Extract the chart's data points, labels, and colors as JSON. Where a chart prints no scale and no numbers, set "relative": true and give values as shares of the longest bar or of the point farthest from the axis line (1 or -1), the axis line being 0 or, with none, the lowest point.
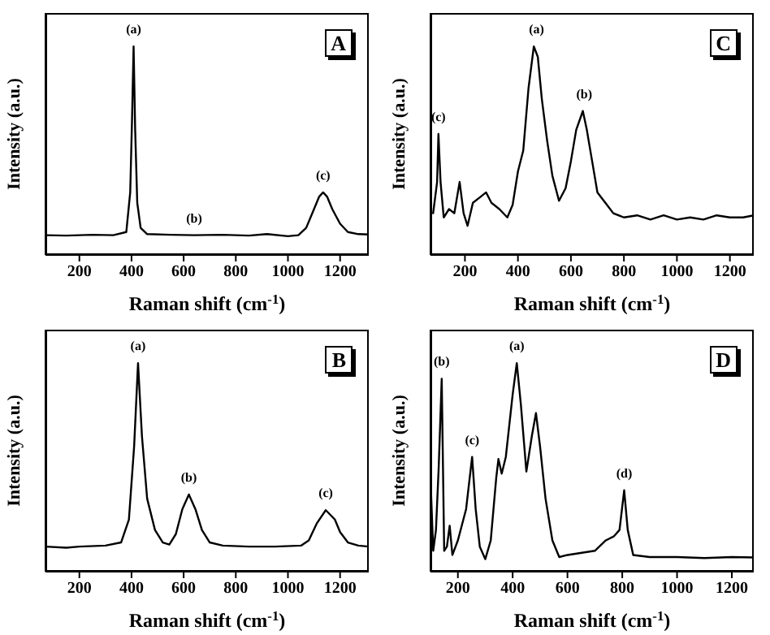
{
  "chart_data": [
    {
      "type": "line",
      "relative": true,
      "xlabel": "Raman shift (cm$^{-1}$)",
      "ylabel": "Intensity (a.u.)",
      "xlim": [
        70,
        1310
      ],
      "xticks": [
        200,
        400,
        600,
        800,
        1000,
        1200
      ],
      "marker": "none",
      "line_style": "solid",
      "series": [
        {
          "color": "#000000",
          "x": [
            70,
            150,
            250,
            330,
            380,
            395,
            402,
            408,
            414,
            422,
            435,
            460,
            550,
            640,
            750,
            850,
            920,
            1000,
            1040,
            1070,
            1100,
            1120,
            1135,
            1150,
            1170,
            1200,
            1230,
            1270,
            1310
          ],
          "values": [
            0.095,
            0.093,
            0.097,
            0.095,
            0.11,
            0.3,
            0.65,
            1,
            0.6,
            0.25,
            0.13,
            0.1,
            0.097,
            0.095,
            0.097,
            0.093,
            0.1,
            0.09,
            0.095,
            0.13,
            0.22,
            0.28,
            0.3,
            0.28,
            0.22,
            0.15,
            0.11,
            0.1,
            0.098
          ]
        }
      ],
      "annotations": [
        "A",
        {
          "text": "(a)",
          "x": 408,
          "y": 1
        },
        {
          "text": "(b)",
          "x": 640,
          "y": 0.095
        },
        {
          "text": "(c)",
          "x": 1135,
          "y": 0.3
        }
      ]
    },
    {
      "type": "line",
      "relative": true,
      "xlabel": "Raman shift (cm$^{-1}$)",
      "ylabel": "Intensity (a.u.)",
      "xlim": [
        70,
        1290
      ],
      "xticks": [
        200,
        400,
        600,
        800,
        1000,
        1200
      ],
      "marker": "none",
      "line_style": "solid",
      "series": [
        {
          "color": "#000000",
          "x": [
            80,
            95,
            100,
            108,
            120,
            140,
            160,
            180,
            195,
            210,
            230,
            260,
            280,
            300,
            330,
            360,
            380,
            400,
            420,
            440,
            460,
            475,
            490,
            510,
            530,
            555,
            580,
            600,
            620,
            645,
            660,
            680,
            700,
            730,
            760,
            800,
            850,
            900,
            950,
            1000,
            1050,
            1100,
            1150,
            1200,
            1250,
            1290
          ],
          "values": [
            0.2,
            0.35,
            0.58,
            0.35,
            0.18,
            0.22,
            0.2,
            0.35,
            0.2,
            0.14,
            0.25,
            0.28,
            0.3,
            0.25,
            0.22,
            0.18,
            0.24,
            0.4,
            0.5,
            0.8,
            1,
            0.95,
            0.75,
            0.55,
            0.38,
            0.26,
            0.32,
            0.45,
            0.6,
            0.69,
            0.6,
            0.45,
            0.3,
            0.25,
            0.2,
            0.18,
            0.19,
            0.17,
            0.19,
            0.17,
            0.18,
            0.17,
            0.19,
            0.18,
            0.18,
            0.19
          ]
        }
      ],
      "annotations": [
        "C",
        {
          "text": "(a)",
          "x": 470,
          "y": 1
        },
        {
          "text": "(b)",
          "x": 650,
          "y": 0.69
        },
        {
          "text": "(c)",
          "x": 100,
          "y": 0.58
        }
      ]
    },
    {
      "type": "line",
      "relative": true,
      "xlabel": "Raman shift (cm$^{-1}$)",
      "ylabel": "Intensity (a.u.)",
      "xlim": [
        70,
        1310
      ],
      "xticks": [
        200,
        400,
        600,
        800,
        1000,
        1200
      ],
      "marker": "none",
      "line_style": "solid",
      "series": [
        {
          "color": "#000000",
          "x": [
            70,
            150,
            200,
            300,
            360,
            390,
            410,
            425,
            440,
            460,
            490,
            520,
            545,
            570,
            595,
            620,
            645,
            670,
            700,
            750,
            850,
            950,
            1050,
            1080,
            1110,
            1145,
            1180,
            1200,
            1230,
            1270,
            1310
          ],
          "values": [
            0.12,
            0.115,
            0.12,
            0.125,
            0.14,
            0.25,
            0.6,
            1,
            0.65,
            0.35,
            0.2,
            0.14,
            0.13,
            0.18,
            0.3,
            0.37,
            0.3,
            0.2,
            0.14,
            0.125,
            0.12,
            0.12,
            0.125,
            0.15,
            0.23,
            0.295,
            0.25,
            0.19,
            0.14,
            0.125,
            0.12
          ]
        }
      ],
      "annotations": [
        "B",
        {
          "text": "(a)",
          "x": 425,
          "y": 1
        },
        {
          "text": "(b)",
          "x": 620,
          "y": 0.37
        },
        {
          "text": "(c)",
          "x": 1145,
          "y": 0.295
        }
      ]
    },
    {
      "type": "line",
      "relative": true,
      "xlabel": "Raman shift (cm$^{-1}$)",
      "ylabel": "Intensity (a.u.)",
      "xlim": [
        100,
        1280
      ],
      "xticks": [
        200,
        400,
        600,
        800,
        1000,
        1200
      ],
      "marker": "none",
      "line_style": "solid",
      "series": [
        {
          "color": "#000000",
          "x": [
            100,
            110,
            120,
            130,
            141,
            150,
            160,
            170,
            180,
            200,
            230,
            252,
            265,
            280,
            300,
            320,
            340,
            348,
            360,
            375,
            400,
            415,
            430,
            450,
            470,
            485,
            500,
            520,
            545,
            570,
            600,
            700,
            740,
            770,
            790,
            807,
            820,
            840,
            900,
            1000,
            1100,
            1200,
            1280
          ],
          "values": [
            0.45,
            0.1,
            0.2,
            0.5,
            0.925,
            0.1,
            0.12,
            0.22,
            0.08,
            0.15,
            0.3,
            0.55,
            0.3,
            0.12,
            0.06,
            0.15,
            0.45,
            0.54,
            0.47,
            0.55,
            0.85,
            1,
            0.8,
            0.48,
            0.65,
            0.76,
            0.6,
            0.35,
            0.15,
            0.07,
            0.08,
            0.1,
            0.15,
            0.17,
            0.2,
            0.39,
            0.2,
            0.08,
            0.07,
            0.07,
            0.065,
            0.07,
            0.068
          ]
        }
      ],
      "annotations": [
        "D",
        {
          "text": "(a)",
          "x": 415,
          "y": 1
        },
        {
          "text": "(b)",
          "x": 141,
          "y": 0.925
        },
        {
          "text": "(c)",
          "x": 252,
          "y": 0.55
        },
        {
          "text": "(d)",
          "x": 807,
          "y": 0.39
        }
      ]
    }
  ]
}
